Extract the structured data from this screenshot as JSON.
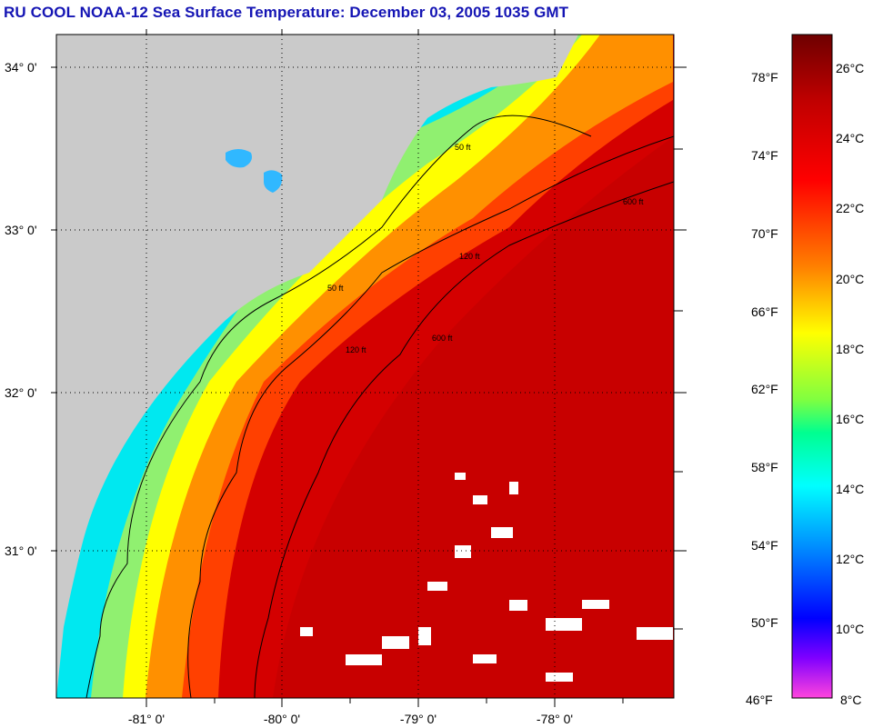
{
  "title": "RU COOL  NOAA-12  Sea Surface Temperature:  December 03, 2005 1035 GMT",
  "map": {
    "lat_labels": [
      "34° 0'",
      "33° 0'",
      "32° 0'",
      "31° 0'"
    ],
    "lon_labels": [
      "-81° 0'",
      "-80° 0'",
      "-79° 0'",
      "-78° 0'"
    ],
    "contour_labels": [
      "50 ft",
      "120 ft",
      "600 ft"
    ]
  },
  "colorbar": {
    "fahrenheit_labels": [
      "78°F",
      "74°F",
      "70°F",
      "66°F",
      "62°F",
      "58°F",
      "54°F",
      "50°F",
      "46°F"
    ],
    "celsius_labels": [
      "26°C",
      "24°C",
      "22°C",
      "20°C",
      "18°C",
      "16°C",
      "14°C",
      "12°C",
      "10°C",
      "8°C"
    ],
    "colors": {
      "warm_max": "#7a0000",
      "hot": "#e00000",
      "warm": "#ff8000",
      "mild": "#ffff00",
      "cool": "#00ff80",
      "cold": "#00ffff",
      "colder": "#0080ff",
      "coldest": "#0000ff",
      "min": "#ff33cc",
      "land": "#cacaca"
    }
  }
}
